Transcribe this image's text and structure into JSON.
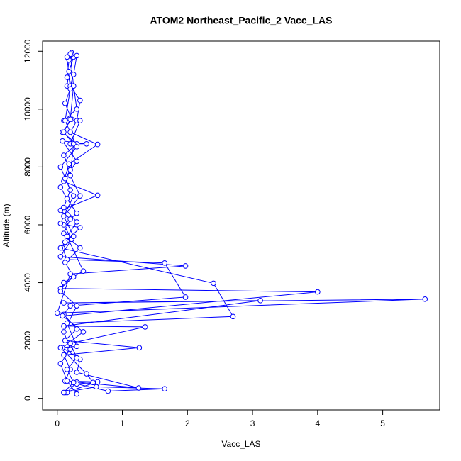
{
  "chart_data": {
    "type": "line",
    "markers": true,
    "title": "ATOM2 Northeast_Pacific_2 Vacc_LAS",
    "x_label": "Vacc_LAS",
    "y_label": "Altitude (m)",
    "color": "#0000ff",
    "xlim": [
      -0.226,
      5.876
    ],
    "ylim": [
      -400,
      12350
    ],
    "xticks": [
      0,
      1,
      2,
      3,
      4,
      5
    ],
    "yticks": [
      0,
      2000,
      4000,
      6000,
      8000,
      10000,
      12000
    ],
    "x": [
      0.22,
      0.25,
      0.18,
      0.15,
      0.2,
      0.12,
      0.22,
      0.08,
      0.3,
      0.1,
      0.2,
      0.05,
      0.15,
      0.3,
      0.1,
      0.22,
      0.08,
      0.15,
      1.65,
      1.97,
      0.2,
      0.1,
      0.3,
      0.12,
      1.26,
      0.1,
      0.2,
      0.12,
      0.62,
      0.12,
      0.15,
      0.3,
      1.25,
      0.3,
      0.35,
      0.08,
      0.4,
      0.08,
      4.0,
      0.05,
      0.25,
      0.12,
      0.35,
      0.1,
      0.2,
      0.05,
      0.62,
      0.1,
      0.18,
      0.62,
      0.2,
      0.3,
      0.35,
      0.2,
      0.25,
      0.3,
      0.22,
      0.18,
      0.15,
      0.25,
      0.3,
      0.1,
      0.35,
      0.2,
      0.45,
      0.08,
      0.3,
      0.12,
      0.25,
      0.05,
      0.35,
      0.12,
      0.05,
      2.4,
      2.7,
      0.15,
      0.3,
      0.05,
      0.45,
      0.55,
      0.3,
      0.78,
      1.65,
      0.6,
      0.1,
      0.25,
      0.15,
      0.3,
      0.2,
      1.35,
      0.1,
      3.12,
      0.1,
      5.65,
      0.0,
      0.2,
      1.97,
      0.05,
      0.25,
      0.1,
      0.35,
      0.2,
      0.25,
      0.1,
      0.2,
      0.25,
      0.2,
      0.15,
      0.2,
      0.12,
      0.3,
      0.05,
      0.2,
      0.1,
      0.3,
      0.15,
      0.4,
      0.1,
      0.05,
      0.3,
      0.1,
      0.2,
      0.05,
      0.15,
      0.3
    ],
    "values": [
      11950,
      11800,
      11300,
      10800,
      10700,
      10200,
      9650,
      9200,
      8800,
      8400,
      7900,
      7300,
      6900,
      6400,
      6000,
      5500,
      5200,
      4800,
      4680,
      3500,
      3200,
      2900,
      2400,
      2000,
      1750,
      1500,
      1000,
      600,
      570,
      200,
      200,
      560,
      360,
      900,
      1350,
      1750,
      2300,
      2850,
      3680,
      3800,
      4200,
      4700,
      5200,
      5700,
      6200,
      6500,
      7020,
      7500,
      8100,
      8780,
      9200,
      9600,
      10300,
      10800,
      11200,
      11850,
      11900,
      11700,
      11100,
      10800,
      10000,
      9600,
      9600,
      8800,
      8800,
      8900,
      8200,
      7600,
      7000,
      6050,
      5900,
      5400,
      5200,
      3980,
      2830,
      2600,
      1800,
      1750,
      850,
      550,
      500,
      250,
      330,
      400,
      200,
      550,
      1000,
      1400,
      1900,
      2470,
      2500,
      3380,
      3300,
      3430,
      2950,
      4300,
      4580,
      4900,
      5600,
      6300,
      7000,
      7700,
      8800,
      9200,
      9650,
      10800,
      11900,
      11800,
      10700,
      9600,
      8700,
      8000,
      7200,
      6600,
      6100,
      5600,
      4400,
      4000,
      3700,
      3200,
      2300,
      1700,
      1200,
      600,
      150
    ]
  }
}
